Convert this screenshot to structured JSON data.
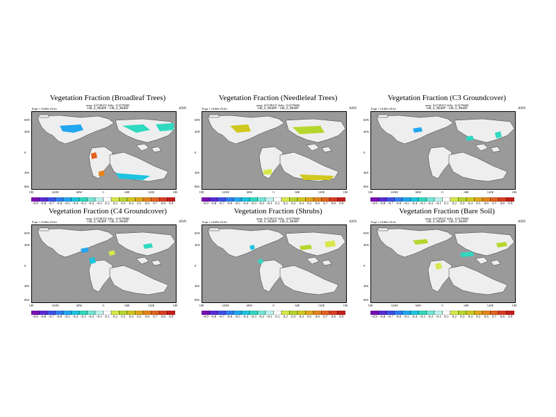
{
  "panels": [
    {
      "title": "Vegetation Fraction (Broadleaf Trees)",
      "subtitle": "rmse: 0.0748157 diffs: -0.0178683",
      "expt": "Expt = tXdSe-tXAe",
      "diff": "148_6_MoBP - 148_6_MoBF",
      "season": "ANN"
    },
    {
      "title": "Vegetation Fraction (Needleleaf Trees)",
      "subtitle": "rmse: 0.0748157 diffs: -0.0178683",
      "expt": "Expt = tXdSe-tXAe",
      "diff": "148_6_MoBP - 148_6_MoBF",
      "season": "ANN"
    },
    {
      "title": "Vegetation Fraction (C3 Groundcover)",
      "subtitle": "rmse: 0.0748157 diffs: -0.0178683",
      "expt": "Expt = tXdSe-tXAe",
      "diff": "148_6_MoBP - 148_6_MoBF",
      "season": "ANN"
    },
    {
      "title": "Vegetation Fraction (C4 Groundcover)",
      "subtitle": "rmse: 0.0748157 diffs: -0.0178683",
      "expt": "Expt = tXdSe-tXAe",
      "diff": "148_6_MoBP - 148_6_MoBF",
      "season": "ANN"
    },
    {
      "title": "Vegetation Fraction (Shrubs)",
      "subtitle": "rmse: 0.0748157 diffs: -0.0178683",
      "expt": "Expt = tXdSe-tXAe",
      "diff": "148_6_MoBP - 148_6_MoBF",
      "season": "ANN"
    },
    {
      "title": "Vegetation Fraction (Bare Soil)",
      "subtitle": "rmse: 0.0748157 diffs: -0.0178683",
      "expt": "Expt = tXdSe-tXAe",
      "diff": "148_6_MoBP - 148_6_MoBF",
      "season": "ANN"
    }
  ],
  "lat_labels": [
    "60N",
    "40N",
    "0",
    "40S",
    "80S"
  ],
  "lon_labels": [
    "180",
    "120W",
    "60W",
    "0",
    "60E",
    "120E",
    "180"
  ],
  "colorbar": {
    "labels": [
      "-0.9",
      "-0.8",
      "-0.7",
      "-0.6",
      "-0.5",
      "-0.4",
      "-0.3",
      "-0.2",
      "-0.1",
      "0.1",
      "0.2",
      "0.3",
      "0.4",
      "0.5",
      "0.6",
      "0.7",
      "0.8",
      "0.9"
    ],
    "colors": [
      "#7a0fb5",
      "#5a2ad6",
      "#3f4fe8",
      "#2f7df2",
      "#22a6ef",
      "#1cc4e0",
      "#2fd9c0",
      "#74e6d6",
      "#bff2ee",
      "#ffffff",
      "#d7e84a",
      "#b5d62f",
      "#d0c81e",
      "#e0a81a",
      "#e4841c",
      "#e26220",
      "#d93d21",
      "#c41c1c"
    ]
  },
  "colors": {
    "ocean": "#9a9a9a",
    "land": "#eeeeee"
  }
}
